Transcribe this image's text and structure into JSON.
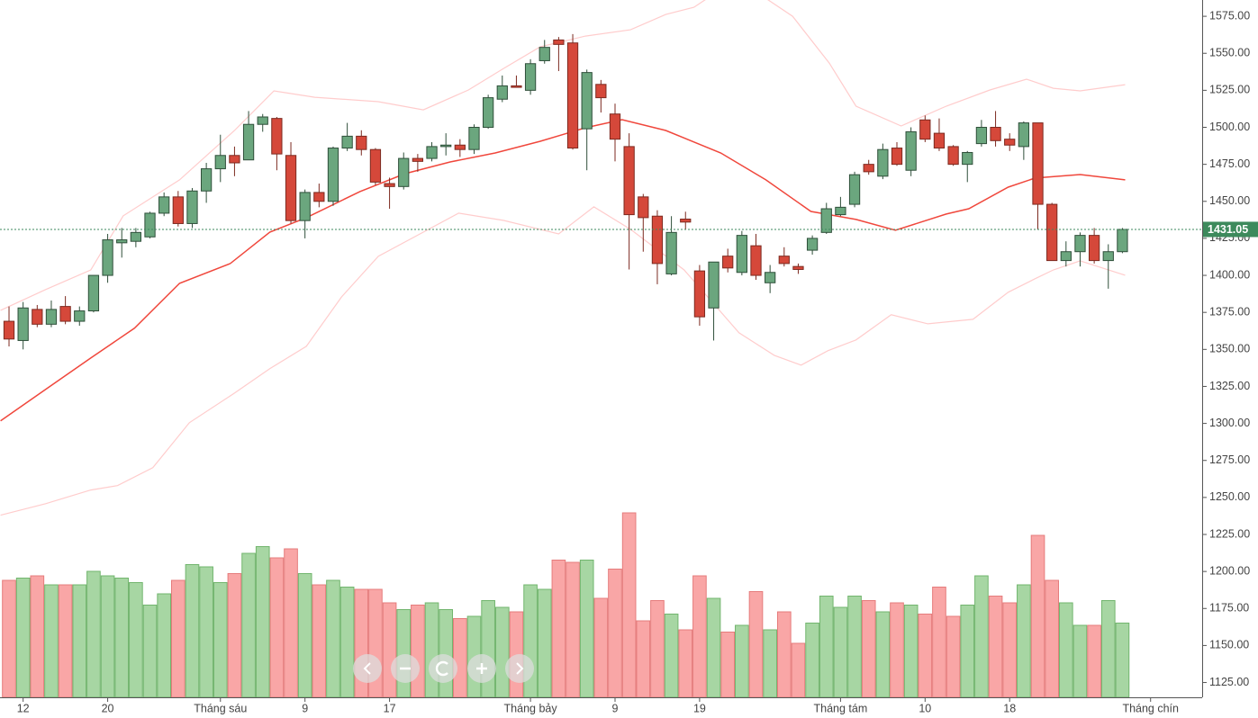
{
  "chart_data": {
    "type": "candlestick",
    "xlim": [
      -0.64,
      84.66
    ],
    "ylim": [
      1115,
      1586
    ],
    "xticks": [
      {
        "value": 1,
        "label": "12"
      },
      {
        "value": 7,
        "label": "20"
      },
      {
        "value": 15,
        "label": "Tháng sáu"
      },
      {
        "value": 21,
        "label": "9"
      },
      {
        "value": 27,
        "label": "17"
      },
      {
        "value": 37,
        "label": "Tháng bảy"
      },
      {
        "value": 43,
        "label": "9"
      },
      {
        "value": 49,
        "label": "19"
      },
      {
        "value": 59,
        "label": "Tháng tám"
      },
      {
        "value": 65,
        "label": "10"
      },
      {
        "value": 71,
        "label": "18"
      },
      {
        "value": 81,
        "label": "Tháng chín"
      }
    ],
    "yticks": [
      {
        "value": 1125,
        "label": "1125.00"
      },
      {
        "value": 1150,
        "label": "1150.00"
      },
      {
        "value": 1175,
        "label": "1175.00"
      },
      {
        "value": 1200,
        "label": "1200.00"
      },
      {
        "value": 1225,
        "label": "1225.00"
      },
      {
        "value": 1250,
        "label": "1250.00"
      },
      {
        "value": 1275,
        "label": "1275.00"
      },
      {
        "value": 1300,
        "label": "1300.00"
      },
      {
        "value": 1325,
        "label": "1325.00"
      },
      {
        "value": 1350,
        "label": "1350.00"
      },
      {
        "value": 1375,
        "label": "1375.00"
      },
      {
        "value": 1400,
        "label": "1400.00"
      },
      {
        "value": 1425,
        "label": "1425.00"
      },
      {
        "value": 1450,
        "label": "1450.00"
      },
      {
        "value": 1475,
        "label": "1475.00"
      },
      {
        "value": 1500,
        "label": "1500.00"
      },
      {
        "value": 1525,
        "label": "1525.00"
      },
      {
        "value": 1550,
        "label": "1550.00"
      },
      {
        "value": 1575,
        "label": "1575.00"
      }
    ],
    "open": [
      1369,
      1356,
      1377,
      1367,
      1379,
      1369,
      1376,
      1400,
      1422,
      1423,
      1426,
      1442,
      1453,
      1435,
      1457,
      1472,
      1481,
      1478,
      1502,
      1506,
      1481,
      1437,
      1456,
      1450,
      1486,
      1494,
      1485,
      1462,
      1460,
      1479,
      1479,
      1487,
      1488,
      1485,
      1500,
      1519,
      1528,
      1525,
      1545,
      1559,
      1557,
      1499,
      1529,
      1509,
      1487,
      1453,
      1440,
      1401,
      1438,
      1403,
      1378,
      1413,
      1402,
      1420,
      1395,
      1413,
      1406,
      1417,
      1429,
      1441,
      1448,
      1475,
      1467,
      1486,
      1471,
      1505,
      1496,
      1487,
      1475,
      1489,
      1500,
      1492,
      1487,
      1503,
      1448,
      1410,
      1416,
      1427,
      1410,
      1416
    ],
    "high": [
      1379,
      1382,
      1380,
      1383,
      1386,
      1379,
      1400,
      1428,
      1432,
      1432,
      1443,
      1456,
      1457,
      1459,
      1476,
      1495,
      1487,
      1511,
      1509,
      1507,
      1490,
      1458,
      1462,
      1487,
      1503,
      1498,
      1486,
      1466,
      1483,
      1482,
      1490,
      1496,
      1492,
      1502,
      1522,
      1535,
      1535,
      1546,
      1559,
      1561,
      1563,
      1539,
      1532,
      1516,
      1496,
      1455,
      1444,
      1440,
      1443,
      1407,
      1409,
      1418,
      1430,
      1428,
      1407,
      1419,
      1408,
      1427,
      1449,
      1453,
      1470,
      1478,
      1489,
      1490,
      1500,
      1508,
      1506,
      1488,
      1484,
      1505,
      1511,
      1496,
      1504,
      1503,
      1449,
      1423,
      1429,
      1432,
      1421,
      1432
    ],
    "low": [
      1352,
      1350,
      1365,
      1365,
      1367,
      1366,
      1375,
      1395,
      1412,
      1419,
      1425,
      1440,
      1433,
      1432,
      1449,
      1463,
      1467,
      1478,
      1497,
      1471,
      1435,
      1425,
      1446,
      1447,
      1484,
      1481,
      1461,
      1445,
      1458,
      1470,
      1477,
      1481,
      1480,
      1482,
      1499,
      1517,
      1527,
      1522,
      1543,
      1538,
      1485,
      1471,
      1510,
      1477,
      1404,
      1416,
      1394,
      1400,
      1431,
      1366,
      1356,
      1402,
      1400,
      1397,
      1388,
      1406,
      1401,
      1414,
      1428,
      1440,
      1446,
      1468,
      1465,
      1474,
      1467,
      1490,
      1484,
      1474,
      1463,
      1487,
      1487,
      1484,
      1478,
      1431,
      1410,
      1406,
      1406,
      1408,
      1391,
      1415
    ],
    "close": [
      1357,
      1378,
      1367,
      1377,
      1369,
      1376,
      1400,
      1424,
      1424,
      1429,
      1442,
      1453,
      1435,
      1457,
      1472,
      1481,
      1476,
      1502,
      1507,
      1482,
      1437,
      1456,
      1450,
      1486,
      1494,
      1485,
      1463,
      1460,
      1479,
      1477,
      1487,
      1488,
      1485,
      1500,
      1520,
      1528,
      1527,
      1543,
      1554,
      1556,
      1486,
      1537,
      1520,
      1492,
      1441,
      1439,
      1408,
      1429,
      1436,
      1372,
      1409,
      1405,
      1427,
      1400,
      1402,
      1408,
      1404,
      1425,
      1445,
      1446,
      1468,
      1470,
      1485,
      1475,
      1497,
      1492,
      1486,
      1475,
      1483,
      1500,
      1491,
      1488,
      1503,
      1448,
      1410,
      1416,
      1427,
      1410,
      1416,
      1431.05
    ],
    "volume": [
      52,
      53,
      54,
      50,
      50,
      50,
      56,
      54,
      53,
      51,
      41,
      46,
      52,
      59,
      58,
      51,
      55,
      64,
      67,
      62,
      66,
      55,
      50,
      52,
      49,
      48,
      48,
      42,
      39,
      41,
      42,
      39,
      35,
      36,
      43,
      40,
      38,
      50,
      48,
      61,
      60,
      61,
      44,
      57,
      82,
      34,
      43,
      37,
      30,
      54,
      44,
      29,
      32,
      47,
      30,
      38,
      24,
      33,
      45,
      40,
      45,
      43,
      38,
      42,
      41,
      37,
      49,
      36,
      41,
      54,
      45,
      42,
      50,
      72,
      52,
      42,
      32,
      32,
      43,
      33
    ],
    "up_color": "#6ba67e",
    "up_edge": "#2f4f3a",
    "down_color": "#d5483a",
    "down_edge": "#7c2a20",
    "volume_up_color": "#a7d6a3",
    "volume_up_edge": "#72b56e",
    "volume_down_color": "#f9a6a6",
    "volume_down_edge": "#e57c7c",
    "last_price_color": "#3d8a5c",
    "overlays": [
      {
        "color": "#ffcccc",
        "x": [
          -0.6,
          2.6,
          5.8,
          8.1,
          12.1,
          16.0,
          18.8,
          21.7,
          26.2,
          29.4,
          32.6,
          35.1,
          37.7,
          40.9,
          44.1,
          46.6,
          48.6,
          50.5,
          53.7,
          55.6,
          58.2,
          60.1,
          63.3,
          66.5,
          69.6,
          72.2,
          74.1,
          76.0,
          79.2
        ],
        "values": [
          1376.4,
          1390.4,
          1403.7,
          1440.2,
          1464.5,
          1497.9,
          1524.6,
          1520.3,
          1517.3,
          1511.8,
          1525.2,
          1539.8,
          1554.4,
          1561.6,
          1565.9,
          1576.2,
          1581.1,
          1593.2,
          1587.1,
          1575,
          1543.4,
          1514.3,
          1500.9,
          1514.3,
          1525.2,
          1532.5,
          1526.4,
          1524.6,
          1528.8
        ]
      },
      {
        "color": "#ffcccc",
        "x": [
          -0.6,
          2.6,
          5.8,
          7.7,
          10.2,
          12.8,
          16.0,
          18.5,
          21.1,
          23.6,
          26.2,
          29.4,
          31.9,
          35.1,
          39.0,
          41.5,
          44.1,
          47.9,
          51.8,
          54.3,
          56.2,
          58.1,
          60.1,
          62.6,
          65.2,
          68.4,
          70.9,
          72.8,
          74.1,
          76.0,
          79.2
        ],
        "values": [
          1238,
          1245.8,
          1255,
          1258,
          1270.1,
          1300.5,
          1320.5,
          1337,
          1352.1,
          1385.5,
          1412.9,
          1429.2,
          1442,
          1437.1,
          1428,
          1446.3,
          1431.1,
          1403.7,
          1361.2,
          1346,
          1339.4,
          1349.1,
          1356.4,
          1373.4,
          1367.3,
          1370.3,
          1388.6,
          1397.7,
          1403.7,
          1409.8,
          1400.1
        ]
      },
      {
        "color": "#f0473c",
        "x": [
          -0.6,
          2.6,
          5.8,
          8.9,
          12.1,
          15.7,
          18.5,
          21.1,
          24.9,
          28.1,
          31.3,
          34.5,
          37.7,
          40.9,
          43.5,
          46.6,
          50.5,
          53.7,
          56.9,
          60.1,
          62.9,
          66.5,
          68.1,
          70.9,
          72.8,
          76.0,
          79.2
        ],
        "values": [
          1301.7,
          1323,
          1344.2,
          1364.3,
          1394.6,
          1408,
          1429.2,
          1439,
          1456.6,
          1468.7,
          1476.6,
          1482.7,
          1490.6,
          1499.7,
          1505.2,
          1497.9,
          1482.7,
          1464.5,
          1443.2,
          1437.8,
          1430.5,
          1441.4,
          1445,
          1459.6,
          1465.7,
          1468.1,
          1464.5
        ]
      }
    ]
  }
}
